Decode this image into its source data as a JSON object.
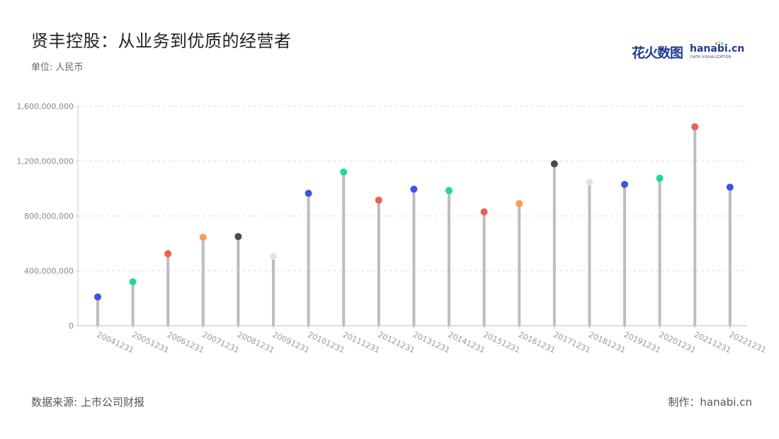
{
  "header": {
    "title": "贤丰控股：从业务到优质的经营者",
    "unit": "单位: 人民币"
  },
  "footer": {
    "source": "数据来源: 上市公司财报",
    "maker": "制作：hanabi.cn"
  },
  "brand": {
    "cn": "花火数图",
    "en": "hanabi.cn",
    "sub": "DATA VISUALIZATION"
  },
  "chart_data": {
    "type": "lollipop",
    "categories": [
      "20041231",
      "20051231",
      "20061231",
      "20071231",
      "20081231",
      "20091231",
      "20101231",
      "20111231",
      "20121231",
      "20131231",
      "20141231",
      "20151231",
      "20161231",
      "20171231",
      "20181231",
      "20191231",
      "20201231",
      "20211231",
      "20221231"
    ],
    "values": [
      210000000,
      320000000,
      525000000,
      645000000,
      650000000,
      505000000,
      965000000,
      1120000000,
      915000000,
      995000000,
      985000000,
      830000000,
      890000000,
      1180000000,
      1045000000,
      1030000000,
      1075000000,
      1450000000,
      1010000000
    ],
    "colors": [
      "#3b55e6",
      "#1ed99a",
      "#f25c54",
      "#f99a5a",
      "#4a4a50",
      "#dfe3ee",
      "#3b55e6",
      "#1ed99a",
      "#f25c54",
      "#3b55e6",
      "#1ed99a",
      "#f25c54",
      "#f99a5a",
      "#4a4a50",
      "#dfe3ee",
      "#3b55e6",
      "#1ed99a",
      "#f25c54",
      "#3b55e6"
    ],
    "stem_color": "#bdbdbd",
    "y_ticks": [
      0,
      400000000,
      800000000,
      1200000000,
      1600000000
    ],
    "y_tick_labels": [
      "0",
      "400,000,000",
      "800,000,000",
      "1,200,000,000",
      "1,600,000,000"
    ],
    "ylim": [
      0,
      1600000000
    ],
    "grid": true
  }
}
